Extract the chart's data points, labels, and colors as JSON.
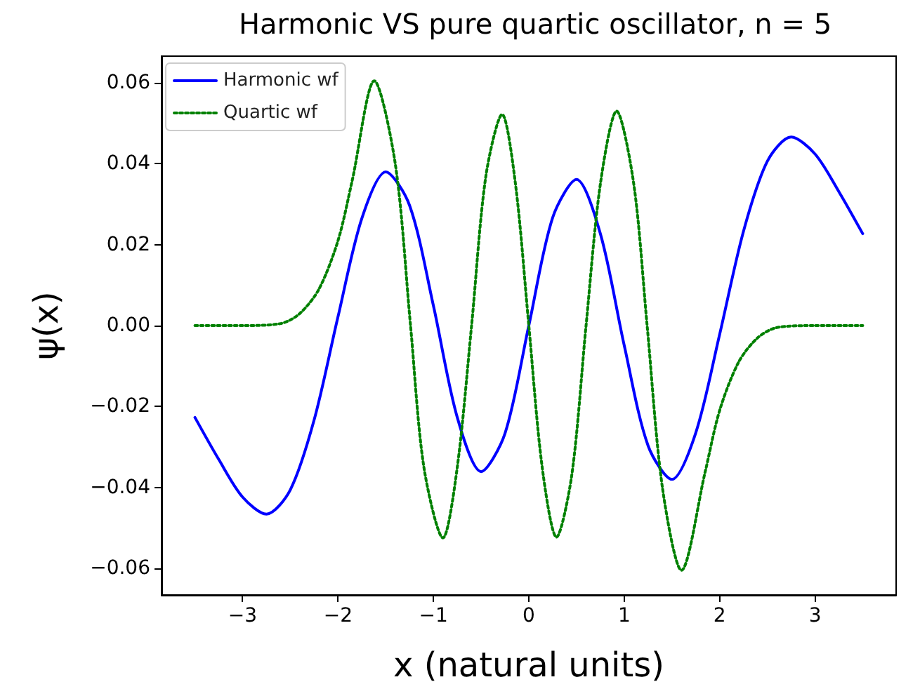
{
  "chart_data": {
    "type": "line",
    "title": "Harmonic VS pure quartic oscillator, n = 5",
    "xlabel": "x (natural units)",
    "ylabel": "ψ(x)",
    "xlim": [
      -3.85,
      3.85
    ],
    "xticks": [
      {
        "value": -3,
        "label": "−3"
      },
      {
        "value": -2,
        "label": "−2"
      },
      {
        "value": -1,
        "label": "−1"
      },
      0,
      1,
      2,
      3
    ],
    "ylim": [
      -0.0666,
      0.0666
    ],
    "yticks": [
      {
        "value": -0.06,
        "label": "−0.06"
      },
      {
        "value": -0.04,
        "label": "−0.04"
      },
      {
        "value": -0.02,
        "label": "−0.02"
      },
      {
        "value": 0,
        "label": "0.00"
      },
      {
        "value": 0.02,
        "label": "0.02"
      },
      {
        "value": 0.04,
        "label": "0.04"
      },
      {
        "value": 0.06,
        "label": "0.06"
      }
    ],
    "grid": false,
    "legend": "top left",
    "marker": "none",
    "series": [
      {
        "name": "Harmonic wf",
        "color": "#0000ff",
        "line_style": "solid",
        "x": [
          -3.5,
          -3.25,
          -3,
          -2.75,
          -2.5,
          -2.25,
          -2,
          -1.75,
          -1.5,
          -1.25,
          -1,
          -0.75,
          -0.5,
          -0.25,
          0,
          0.25,
          0.5,
          0.75,
          1,
          1.25,
          1.5,
          1.75,
          2,
          2.25,
          2.5,
          2.75,
          3,
          3.25,
          3.5
        ],
        "values": [
          -0.0227,
          -0.0331,
          -0.0424,
          -0.0466,
          -0.0406,
          -0.0233,
          0.0022,
          0.0265,
          0.038,
          0.0297,
          0.0049,
          -0.0227,
          -0.0361,
          -0.0267,
          0,
          0.0267,
          0.0361,
          0.0227,
          -0.0049,
          -0.0297,
          -0.038,
          -0.0265,
          -0.0022,
          0.0233,
          0.0406,
          0.0466,
          0.0424,
          0.0331,
          0.0227
        ]
      },
      {
        "name": "Quartic wf",
        "color": "#008000",
        "line_style": "dotted",
        "x": [
          -3.5,
          -3,
          -2.6,
          -2.4,
          -2.2,
          -2,
          -1.85,
          -1.62,
          -1.4,
          -1.24,
          -1.1,
          -0.9,
          -0.75,
          -0.6,
          -0.45,
          -0.28,
          -0.14,
          0,
          0.14,
          0.29,
          0.45,
          0.6,
          0.75,
          0.92,
          1.1,
          1.24,
          1.4,
          1.6,
          1.85,
          2,
          2.2,
          2.4,
          2.6,
          3,
          3.5
        ],
        "values": [
          0,
          0,
          0.0005,
          0.003,
          0.009,
          0.021,
          0.036,
          0.0605,
          0.04,
          0,
          -0.035,
          -0.0525,
          -0.035,
          0,
          0.037,
          0.0522,
          0.035,
          0,
          -0.035,
          -0.0523,
          -0.037,
          0,
          0.035,
          0.053,
          0.035,
          0,
          -0.04,
          -0.0605,
          -0.036,
          -0.021,
          -0.009,
          -0.003,
          -0.0005,
          0,
          0
        ]
      }
    ]
  }
}
